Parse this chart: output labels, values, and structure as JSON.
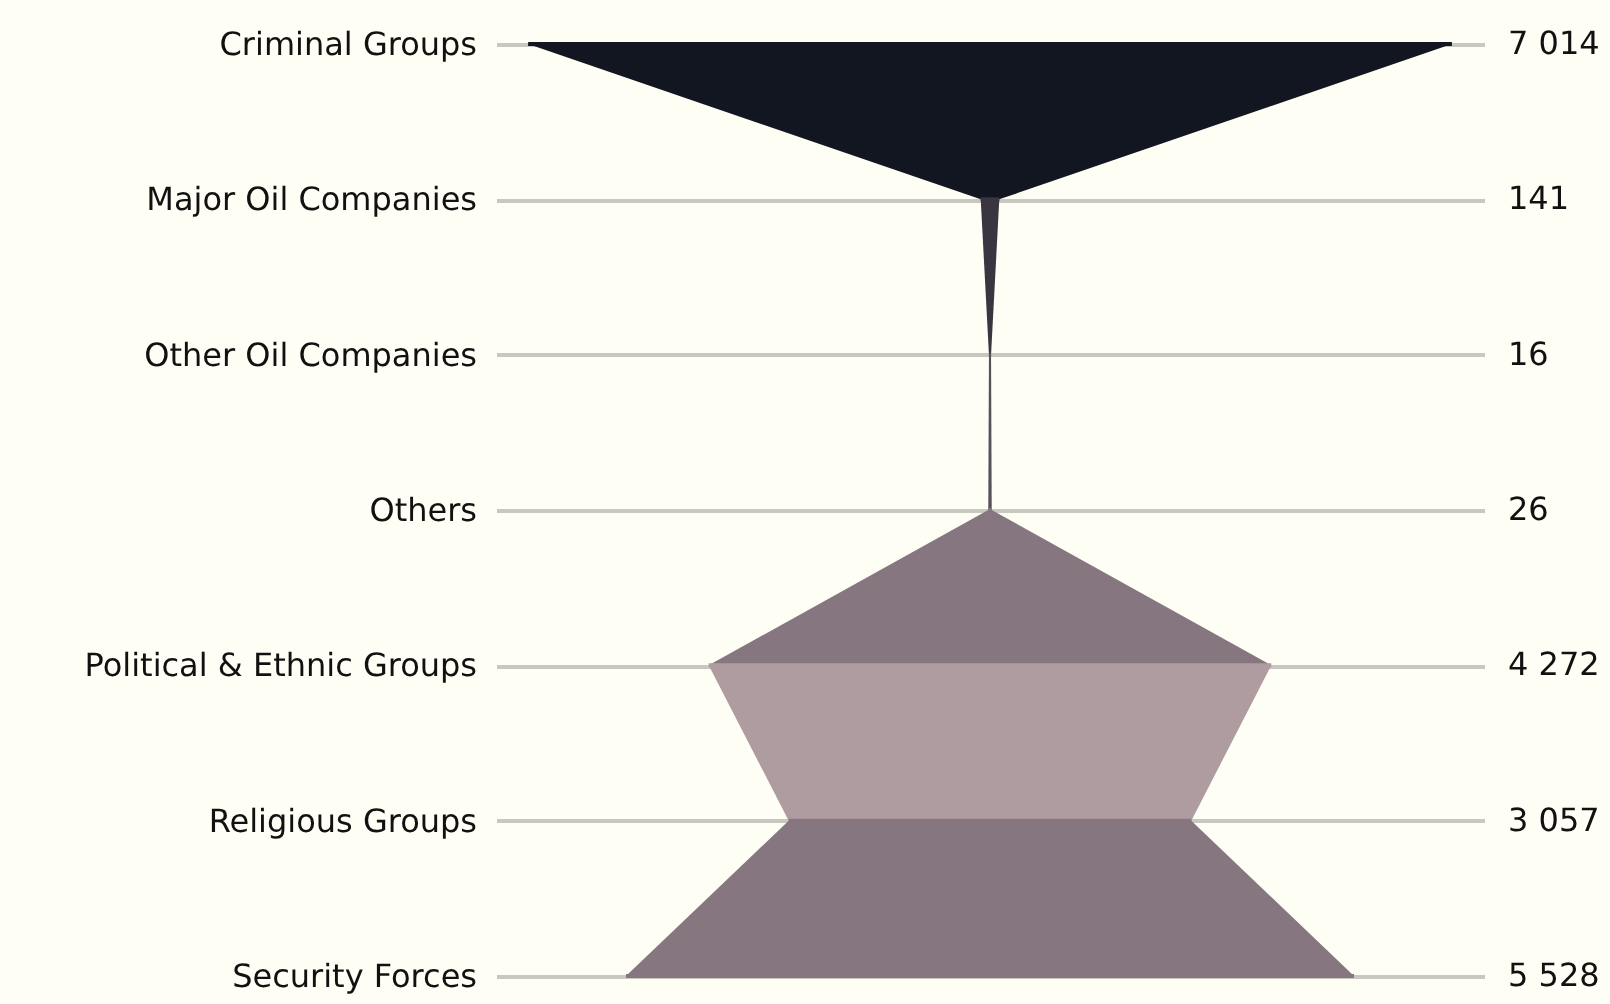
{
  "chart_data": {
    "type": "other",
    "categories": [
      "Criminal Groups",
      "Major Oil Companies",
      "Other Oil Companies",
      "Others",
      "Political & Ethnic Groups",
      "Religious Groups",
      "Security Forces"
    ],
    "values": [
      7014,
      141,
      16,
      26,
      4272,
      3057,
      5528
    ],
    "value_labels": [
      "7 014",
      "141",
      "16",
      "26",
      "4 272",
      "3 057",
      "5 528"
    ],
    "colors": [
      "#121620",
      "#3a3540",
      "#58505a",
      "#867680",
      "#ae9ca0",
      "#867680",
      "#867680"
    ]
  }
}
